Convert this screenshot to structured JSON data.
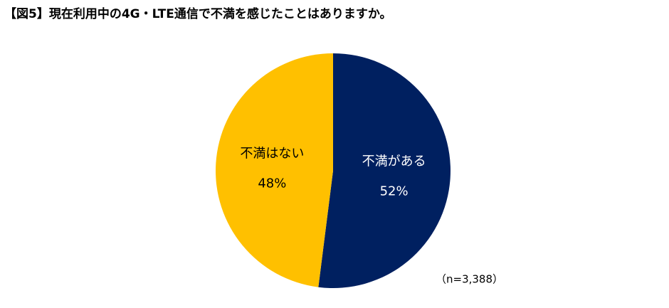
{
  "chart_data": {
    "type": "pie",
    "title": "【図5】現在利用中の4G・LTE通信で不満を感じたことはありますか。",
    "categories": [
      "不満がある",
      "不満はない"
    ],
    "values": [
      52,
      48
    ],
    "value_labels": [
      "52%",
      "48%"
    ],
    "colors": [
      "#002060",
      "#FFC000"
    ],
    "note": "（n=3,388）"
  }
}
